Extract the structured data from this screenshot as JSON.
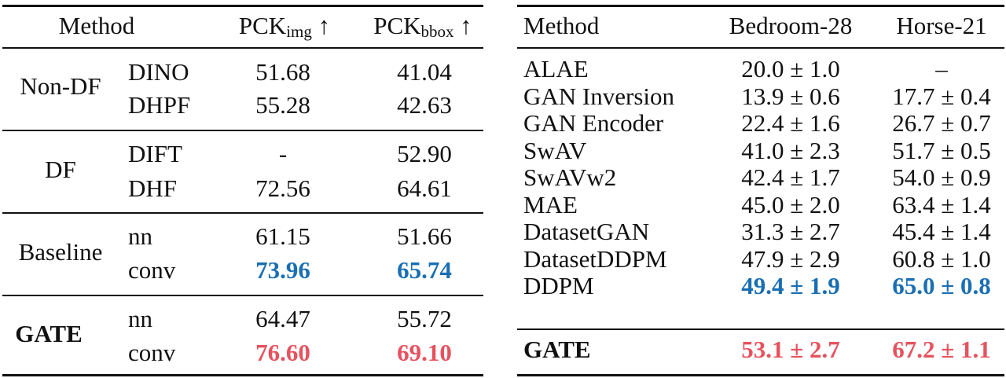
{
  "colors": {
    "best": "#e6525e",
    "second": "#1a6fb3"
  },
  "left_table": {
    "headers": {
      "method": "Method",
      "pck_img_main": "PCK",
      "pck_img_sub": "img",
      "pck_img_arrow": "↑",
      "pck_bbox_main": "PCK",
      "pck_bbox_sub": "bbox",
      "pck_bbox_arrow": "↑"
    },
    "groups": [
      {
        "name": "Non-DF",
        "rows": [
          {
            "method": "DINO",
            "pck_img": "51.68",
            "pck_bbox": "41.04"
          },
          {
            "method": "DHPF",
            "pck_img": "55.28",
            "pck_bbox": "42.63"
          }
        ]
      },
      {
        "name": "DF",
        "rows": [
          {
            "method": "DIFT",
            "pck_img": "-",
            "pck_bbox": "52.90"
          },
          {
            "method": "DHF",
            "pck_img": "72.56",
            "pck_bbox": "64.61"
          }
        ]
      },
      {
        "name": "Baseline",
        "rows": [
          {
            "method": "nn",
            "pck_img": "61.15",
            "pck_bbox": "51.66"
          },
          {
            "method": "conv",
            "pck_img": "73.96",
            "pck_bbox": "65.74"
          }
        ]
      },
      {
        "name": "GATE",
        "rows": [
          {
            "method": "nn",
            "pck_img": "64.47",
            "pck_bbox": "55.72"
          },
          {
            "method": "conv",
            "pck_img": "76.60",
            "pck_bbox": "69.10"
          }
        ]
      }
    ]
  },
  "right_table": {
    "headers": {
      "method": "Method",
      "bedroom": "Bedroom-28",
      "horse": "Horse-21"
    },
    "rows": [
      {
        "method": "ALAE",
        "bedroom": "20.0 ± 1.0",
        "horse": "–"
      },
      {
        "method": "GAN Inversion",
        "bedroom": "13.9 ± 0.6",
        "horse": "17.7 ± 0.4"
      },
      {
        "method": "GAN Encoder",
        "bedroom": "22.4 ± 1.6",
        "horse": "26.7 ± 0.7"
      },
      {
        "method": "SwAV",
        "bedroom": "41.0 ± 2.3",
        "horse": "51.7 ± 0.5"
      },
      {
        "method": "SwAVw2",
        "bedroom": "42.4 ± 1.7",
        "horse": "54.0 ± 0.9"
      },
      {
        "method": "MAE",
        "bedroom": "45.0 ± 2.0",
        "horse": "63.4 ± 1.4"
      },
      {
        "method": "DatasetGAN",
        "bedroom": "31.3 ± 2.7",
        "horse": "45.4 ± 1.4"
      },
      {
        "method": "DatasetDDPM",
        "bedroom": "47.9 ± 2.9",
        "horse": "60.8 ± 1.0"
      },
      {
        "method": "DDPM",
        "bedroom": "49.4 ± 1.9",
        "horse": "65.0 ± 0.8"
      }
    ],
    "final_row": {
      "method": "GATE",
      "bedroom": "53.1 ± 2.7",
      "horse": "67.2 ± 1.1"
    }
  }
}
